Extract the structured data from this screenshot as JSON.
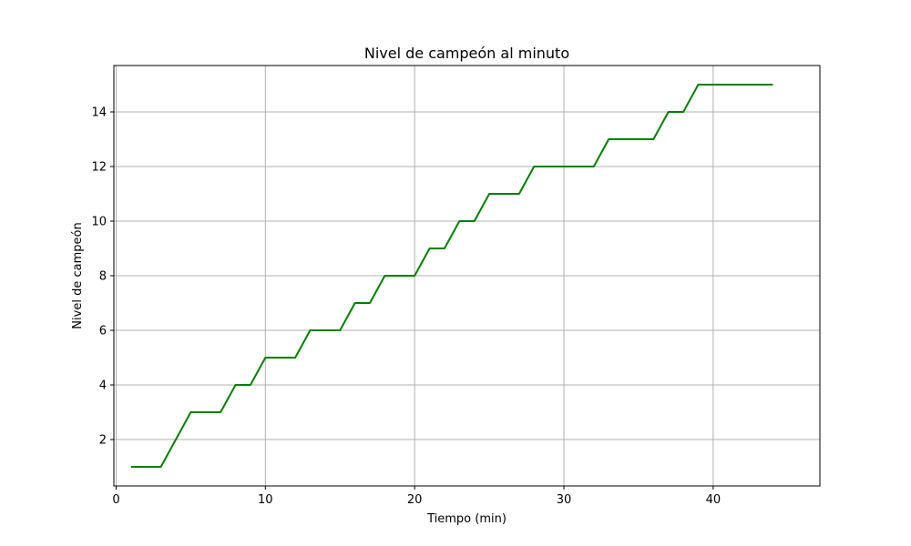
{
  "chart_data": {
    "type": "line",
    "title": "Nivel de campeón al minuto",
    "xlabel": "Tiempo (min)",
    "ylabel": "Nivel de campeón",
    "xlim": [
      -0.15,
      47.15
    ],
    "ylim": [
      0.3,
      15.7
    ],
    "xticks": [
      0,
      10,
      20,
      30,
      40
    ],
    "yticks": [
      2,
      4,
      6,
      8,
      10,
      12,
      14
    ],
    "grid": true,
    "series": [
      {
        "color": "#008000",
        "x": [
          1,
          2,
          3,
          4,
          5,
          6,
          7,
          8,
          9,
          10,
          11,
          12,
          13,
          14,
          15,
          16,
          17,
          18,
          19,
          20,
          21,
          22,
          23,
          24,
          25,
          26,
          27,
          28,
          29,
          30,
          31,
          32,
          33,
          34,
          35,
          36,
          37,
          38,
          39,
          40,
          41,
          42,
          43,
          44
        ],
        "y": [
          1,
          1,
          1,
          2,
          3,
          3,
          3,
          4,
          4,
          5,
          5,
          5,
          6,
          6,
          6,
          7,
          7,
          8,
          8,
          8,
          9,
          9,
          10,
          10,
          11,
          11,
          11,
          12,
          12,
          12,
          12,
          12,
          13,
          13,
          13,
          13,
          14,
          14,
          15,
          15,
          15,
          15,
          15,
          15
        ]
      }
    ]
  }
}
